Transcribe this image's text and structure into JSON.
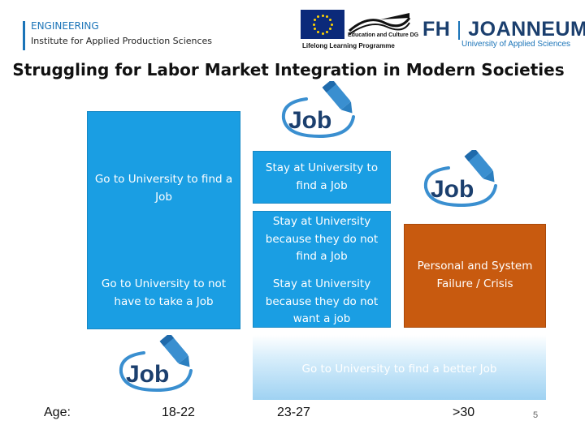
{
  "header": {
    "department": "ENGINEERING",
    "institute": "Institute for Applied Production Sciences"
  },
  "logos": {
    "eu_dg": "Education and Culture DG",
    "eu_programme": "Lifelong Learning Programme",
    "fh_left": "FH",
    "fh_right": "JOANNEUM",
    "fh_subtitle": "University of Applied Sciences"
  },
  "slide": {
    "title": "Struggling for Labor Market Integration in Modern Societies",
    "page_number": "5"
  },
  "boxes": {
    "go_university_job": "Go to University to find a Job",
    "go_university_no_job": "Go to University to not have to take a Job",
    "stay_find_job": "Stay at University to find a Job",
    "stay_not_find": "Stay at University because they do not find a Job",
    "stay_not_want": "Stay at University because they do not want a job",
    "crisis": "Personal and System Failure / Crisis",
    "better_job": "Go to University to find a better Job"
  },
  "job_icon_text": "Job",
  "ages": {
    "label": "Age:",
    "range_1": "18-22",
    "range_2": "23-27",
    "range_3": ">30"
  },
  "colors": {
    "box_blue": "#1a9ee3",
    "box_orange": "#c85a0f",
    "accent_blue": "#1b74b8",
    "marker_blue": "#3a8fd0"
  },
  "icons": {
    "job_marker": "job-marker-icon",
    "eu_flag": "eu-flag-icon"
  }
}
